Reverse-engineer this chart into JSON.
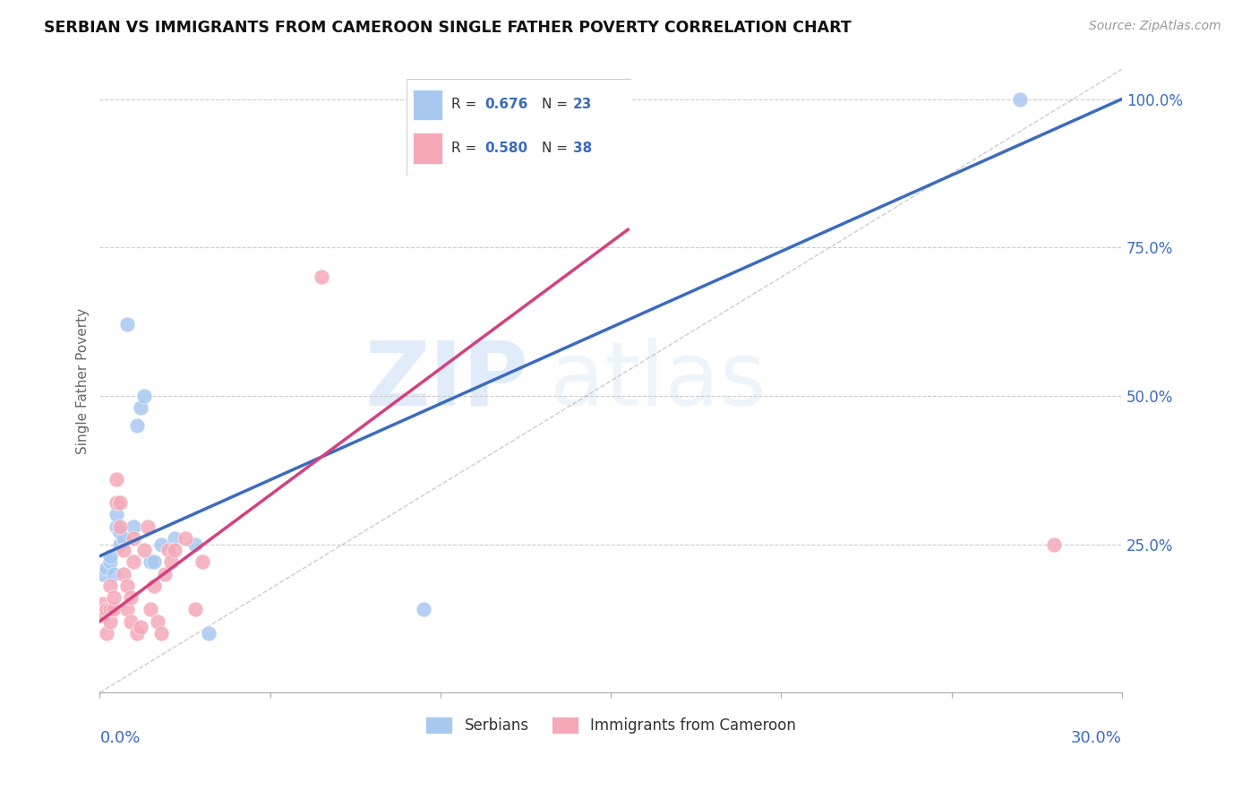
{
  "title": "SERBIAN VS IMMIGRANTS FROM CAMEROON SINGLE FATHER POVERTY CORRELATION CHART",
  "source": "Source: ZipAtlas.com",
  "ylabel": "Single Father Poverty",
  "legend_r_serbian": "0.676",
  "legend_n_serbian": "23",
  "legend_r_cameroon": "0.580",
  "legend_n_cameroon": "38",
  "legend_label_serbian": "Serbians",
  "legend_label_cameroon": "Immigrants from Cameroon",
  "serbian_color": "#a8c8f0",
  "cameroon_color": "#f4a8b8",
  "serbian_line_color": "#3a6bbf",
  "cameroon_line_color": "#d44080",
  "watermark_zip": "ZIP",
  "watermark_atlas": "atlas",
  "serbian_x": [
    0.001,
    0.002,
    0.003,
    0.003,
    0.004,
    0.005,
    0.005,
    0.006,
    0.006,
    0.007,
    0.008,
    0.01,
    0.011,
    0.012,
    0.013,
    0.015,
    0.016,
    0.018,
    0.022,
    0.028,
    0.032,
    0.095,
    0.27
  ],
  "serbian_y": [
    0.2,
    0.21,
    0.22,
    0.23,
    0.2,
    0.28,
    0.3,
    0.25,
    0.27,
    0.26,
    0.62,
    0.28,
    0.45,
    0.48,
    0.5,
    0.22,
    0.22,
    0.25,
    0.26,
    0.25,
    0.1,
    0.14,
    1.0
  ],
  "cameroon_x": [
    0.001,
    0.001,
    0.002,
    0.002,
    0.003,
    0.003,
    0.003,
    0.004,
    0.004,
    0.005,
    0.005,
    0.006,
    0.006,
    0.007,
    0.007,
    0.008,
    0.008,
    0.009,
    0.009,
    0.01,
    0.01,
    0.011,
    0.012,
    0.013,
    0.014,
    0.015,
    0.016,
    0.017,
    0.018,
    0.019,
    0.02,
    0.021,
    0.022,
    0.025,
    0.028,
    0.03,
    0.065,
    0.28
  ],
  "cameroon_y": [
    0.13,
    0.15,
    0.1,
    0.14,
    0.12,
    0.14,
    0.18,
    0.14,
    0.16,
    0.32,
    0.36,
    0.28,
    0.32,
    0.2,
    0.24,
    0.14,
    0.18,
    0.12,
    0.16,
    0.22,
    0.26,
    0.1,
    0.11,
    0.24,
    0.28,
    0.14,
    0.18,
    0.12,
    0.1,
    0.2,
    0.24,
    0.22,
    0.24,
    0.26,
    0.14,
    0.22,
    0.7,
    0.25
  ],
  "xlim": [
    0.0,
    0.3
  ],
  "ylim": [
    0.0,
    1.05
  ],
  "serbian_line_x0": 0.0,
  "serbian_line_y0": 0.23,
  "serbian_line_x1": 0.3,
  "serbian_line_y1": 1.0,
  "cameroon_line_x0": 0.0,
  "cameroon_line_y0": 0.12,
  "cameroon_line_x1": 0.155,
  "cameroon_line_y1": 0.78
}
